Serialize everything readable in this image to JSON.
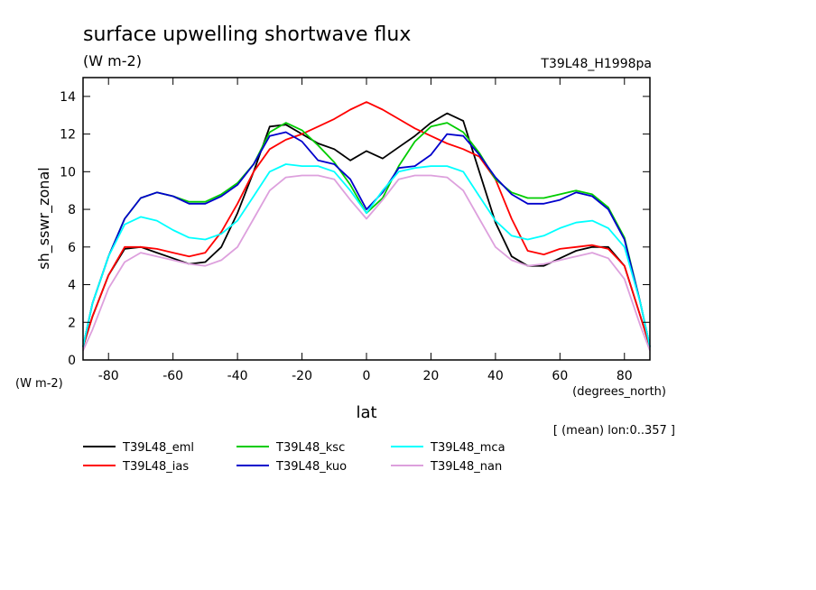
{
  "chart_data": {
    "type": "line",
    "title": "surface upwelling shortwave flux",
    "subtitle": "(W m-2)",
    "run_label": "T39L48_H1998pa",
    "ylabel": "sh_sswr_zonal",
    "yunit": "(W m-2)",
    "xlabel": "lat",
    "xunit": "(degrees_north)",
    "note": "[ (mean) lon:0..357 ]",
    "xlim": [
      -87.9,
      87.9
    ],
    "ylim": [
      0,
      15
    ],
    "xticks": [
      -80,
      -60,
      -40,
      -20,
      0,
      20,
      40,
      60,
      80
    ],
    "yticks": [
      0,
      2,
      4,
      6,
      8,
      10,
      12,
      14
    ],
    "x": [
      -87.9,
      -85,
      -80,
      -75,
      -70,
      -65,
      -60,
      -55,
      -50,
      -45,
      -40,
      -35,
      -30,
      -25,
      -20,
      -15,
      -10,
      -5,
      0,
      5,
      10,
      15,
      20,
      25,
      30,
      35,
      40,
      45,
      50,
      55,
      60,
      65,
      70,
      75,
      80,
      85,
      87.9
    ],
    "series": [
      {
        "name": "T39L48_eml",
        "color": "#000000",
        "values": [
          0.7,
          2.3,
          4.5,
          5.9,
          6.0,
          5.7,
          5.4,
          5.1,
          5.2,
          6.0,
          7.8,
          10.0,
          12.4,
          12.5,
          12.0,
          11.5,
          11.2,
          10.6,
          11.1,
          10.7,
          11.3,
          11.9,
          12.6,
          13.1,
          12.7,
          10.0,
          7.3,
          5.5,
          5.0,
          5.0,
          5.4,
          5.8,
          6.0,
          6.0,
          5.0,
          2.3,
          0.7
        ]
      },
      {
        "name": "T39L48_ias",
        "color": "#ff0000",
        "values": [
          0.7,
          2.3,
          4.5,
          6.0,
          6.0,
          5.9,
          5.7,
          5.5,
          5.7,
          6.8,
          8.3,
          10.0,
          11.2,
          11.7,
          12.0,
          12.4,
          12.8,
          13.3,
          13.7,
          13.3,
          12.8,
          12.3,
          11.9,
          11.5,
          11.2,
          10.8,
          9.6,
          7.5,
          5.8,
          5.6,
          5.9,
          6.0,
          6.1,
          5.9,
          5.0,
          2.3,
          0.7
        ]
      },
      {
        "name": "T39L48_ksc",
        "color": "#00cc00",
        "values": [
          0.7,
          3.0,
          5.5,
          7.5,
          8.6,
          8.9,
          8.7,
          8.4,
          8.4,
          8.8,
          9.4,
          10.4,
          12.1,
          12.6,
          12.2,
          11.4,
          10.5,
          9.3,
          7.8,
          8.6,
          10.3,
          11.6,
          12.4,
          12.6,
          12.1,
          11.0,
          9.6,
          8.9,
          8.6,
          8.6,
          8.8,
          9.0,
          8.8,
          8.1,
          6.5,
          3.0,
          0.7
        ]
      },
      {
        "name": "T39L48_kuo",
        "color": "#0000cc",
        "values": [
          0.7,
          3.0,
          5.5,
          7.5,
          8.6,
          8.9,
          8.7,
          8.3,
          8.3,
          8.7,
          9.3,
          10.4,
          11.9,
          12.1,
          11.6,
          10.6,
          10.4,
          9.6,
          8.0,
          8.9,
          10.2,
          10.3,
          10.9,
          12.0,
          11.9,
          10.9,
          9.7,
          8.8,
          8.3,
          8.3,
          8.5,
          8.9,
          8.7,
          8.0,
          6.4,
          3.0,
          0.7
        ]
      },
      {
        "name": "T39L48_mca",
        "color": "#00ffff",
        "values": [
          0.7,
          3.0,
          5.5,
          7.2,
          7.6,
          7.4,
          6.9,
          6.5,
          6.4,
          6.7,
          7.4,
          8.7,
          10.0,
          10.4,
          10.3,
          10.3,
          10.0,
          9.0,
          7.8,
          9.0,
          10.0,
          10.2,
          10.3,
          10.3,
          10.0,
          8.7,
          7.4,
          6.6,
          6.4,
          6.6,
          7.0,
          7.3,
          7.4,
          7.0,
          6.0,
          3.0,
          0.7
        ]
      },
      {
        "name": "T39L48_nan",
        "color": "#dda0dd",
        "values": [
          0.5,
          1.6,
          3.8,
          5.2,
          5.7,
          5.5,
          5.3,
          5.1,
          5.0,
          5.3,
          6.0,
          7.5,
          9.0,
          9.7,
          9.8,
          9.8,
          9.6,
          8.5,
          7.5,
          8.5,
          9.6,
          9.8,
          9.8,
          9.7,
          9.0,
          7.5,
          6.0,
          5.3,
          5.0,
          5.1,
          5.3,
          5.5,
          5.7,
          5.4,
          4.3,
          1.8,
          0.5
        ]
      }
    ]
  }
}
